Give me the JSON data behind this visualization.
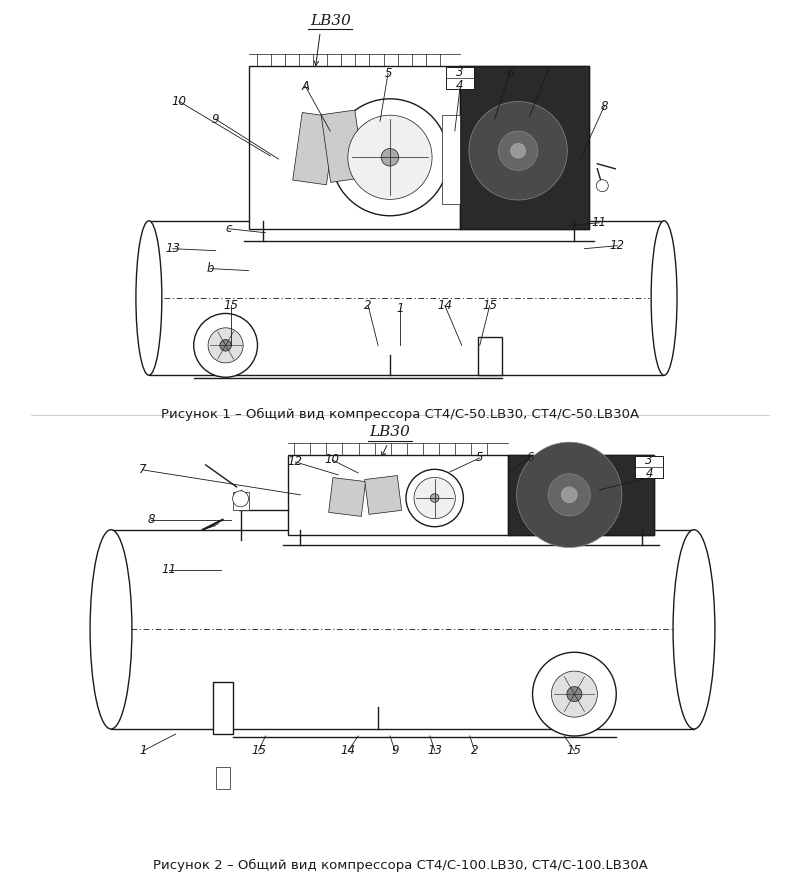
{
  "bg_color": "#ffffff",
  "line_color": "#1a1a1a",
  "fig1_title": "LB30",
  "fig1_caption": "Рисунок 1 – Общий вид компрессора СТ4/С-50.LB30, СТ4/С-50.LB30А",
  "fig2_title": "LB30",
  "fig2_caption": "Рисунок 2 – Общий вид компрессора СТ4/С-100.LB30, СТ4/С-100.LB30А",
  "font_size_title": 11,
  "font_size_label": 8.5,
  "font_size_caption": 9.5,
  "lw_main": 1.0,
  "lw_thin": 0.5,
  "lw_thick": 1.5
}
